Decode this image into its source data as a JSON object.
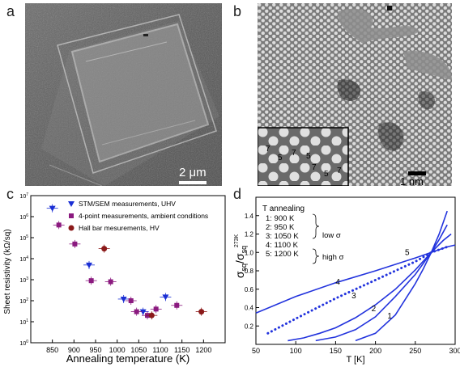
{
  "panels": {
    "a": {
      "letter": "a",
      "scale_bar": "2 μm"
    },
    "b": {
      "letter": "b",
      "scale_bar": "1 nm",
      "inset_labels": [
        "7",
        "5",
        "7",
        "5",
        "7",
        "5",
        "7"
      ]
    },
    "c": {
      "letter": "c"
    },
    "d": {
      "letter": "d"
    }
  },
  "chart_data": [
    {
      "panel": "c",
      "type": "scatter",
      "xlabel": "Annealing temperature (K)",
      "ylabel": "Sheet resistivity (kΩ/sq)",
      "xlim": [
        800,
        1250
      ],
      "ylim": [
        1,
        10000000
      ],
      "yscale": "log",
      "xticks": [
        "850",
        "900",
        "950",
        "1000",
        "1050",
        "1100",
        "1150",
        "1200"
      ],
      "yticks": [
        "10^0",
        "10^1",
        "10^2",
        "10^3",
        "10^4",
        "10^5",
        "10^6",
        "10^7"
      ],
      "legend_position": "top-right",
      "series": [
        {
          "name": "STM/SEM measurements, UHV",
          "marker": "triangle-down",
          "color": "#1a2fd4",
          "points": [
            [
              850,
              2500000
            ],
            [
              935,
              5000
            ],
            [
              1015,
              120
            ],
            [
              1060,
              30
            ],
            [
              1112,
              150
            ]
          ]
        },
        {
          "name": "4-point measurements, ambient conditions",
          "marker": "square",
          "color": "#8b1a7f",
          "points": [
            [
              865,
              400000
            ],
            [
              902,
              50000
            ],
            [
              940,
              900
            ],
            [
              985,
              800
            ],
            [
              1032,
              100
            ],
            [
              1045,
              30
            ],
            [
              1070,
              20
            ],
            [
              1090,
              40
            ],
            [
              1138,
              60
            ]
          ]
        },
        {
          "name": "Hall bar mesurements, HV",
          "marker": "circle",
          "color": "#8b1a1a",
          "points": [
            [
              970,
              30000
            ],
            [
              1080,
              20
            ],
            [
              1195,
              30
            ]
          ]
        }
      ]
    },
    {
      "panel": "d",
      "type": "line",
      "xlabel": "T [K]",
      "xlim": [
        50,
        300
      ],
      "ylim": [
        0,
        1.6
      ],
      "xticks": [
        "50",
        "100",
        "150",
        "200",
        "250",
        "300"
      ],
      "yticks": [
        "0.2",
        "0.4",
        "0.6",
        "0.8",
        "1.0",
        "1.2",
        "1.4"
      ],
      "legend_title": "T annealing",
      "legend": [
        "1:   900 K",
        "2:   950 K",
        "3: 1050 K",
        "4: 1100 K",
        "5: 1200 K"
      ],
      "legend_groups": [
        "low σ",
        "high σ"
      ],
      "series": [
        {
          "name": "1",
          "x": [
            175,
            200,
            225,
            250,
            260,
            270,
            280,
            290
          ],
          "y": [
            0.04,
            0.12,
            0.32,
            0.66,
            0.82,
            1.0,
            1.2,
            1.45
          ]
        },
        {
          "name": "2",
          "x": [
            125,
            150,
            175,
            200,
            225,
            250,
            270,
            280,
            290
          ],
          "y": [
            0.04,
            0.08,
            0.16,
            0.3,
            0.52,
            0.76,
            1.0,
            1.14,
            1.3
          ]
        },
        {
          "name": "3",
          "x": [
            90,
            110,
            130,
            150,
            175,
            200,
            225,
            250,
            270,
            285,
            295
          ],
          "y": [
            0.04,
            0.07,
            0.12,
            0.18,
            0.29,
            0.43,
            0.6,
            0.81,
            1.0,
            1.13,
            1.2
          ]
        },
        {
          "name": "4",
          "style": "dotted",
          "x": [
            65,
            100,
            150,
            200,
            250,
            270,
            290
          ],
          "y": [
            0.12,
            0.28,
            0.5,
            0.7,
            0.9,
            1.0,
            1.06
          ]
        },
        {
          "name": "5",
          "x": [
            50,
            100,
            150,
            200,
            250,
            270,
            290,
            300
          ],
          "y": [
            0.34,
            0.52,
            0.67,
            0.8,
            0.94,
            1.0,
            1.06,
            1.08
          ]
        }
      ],
      "curve_labels": [
        "1",
        "2",
        "3",
        "4",
        "5"
      ]
    }
  ]
}
